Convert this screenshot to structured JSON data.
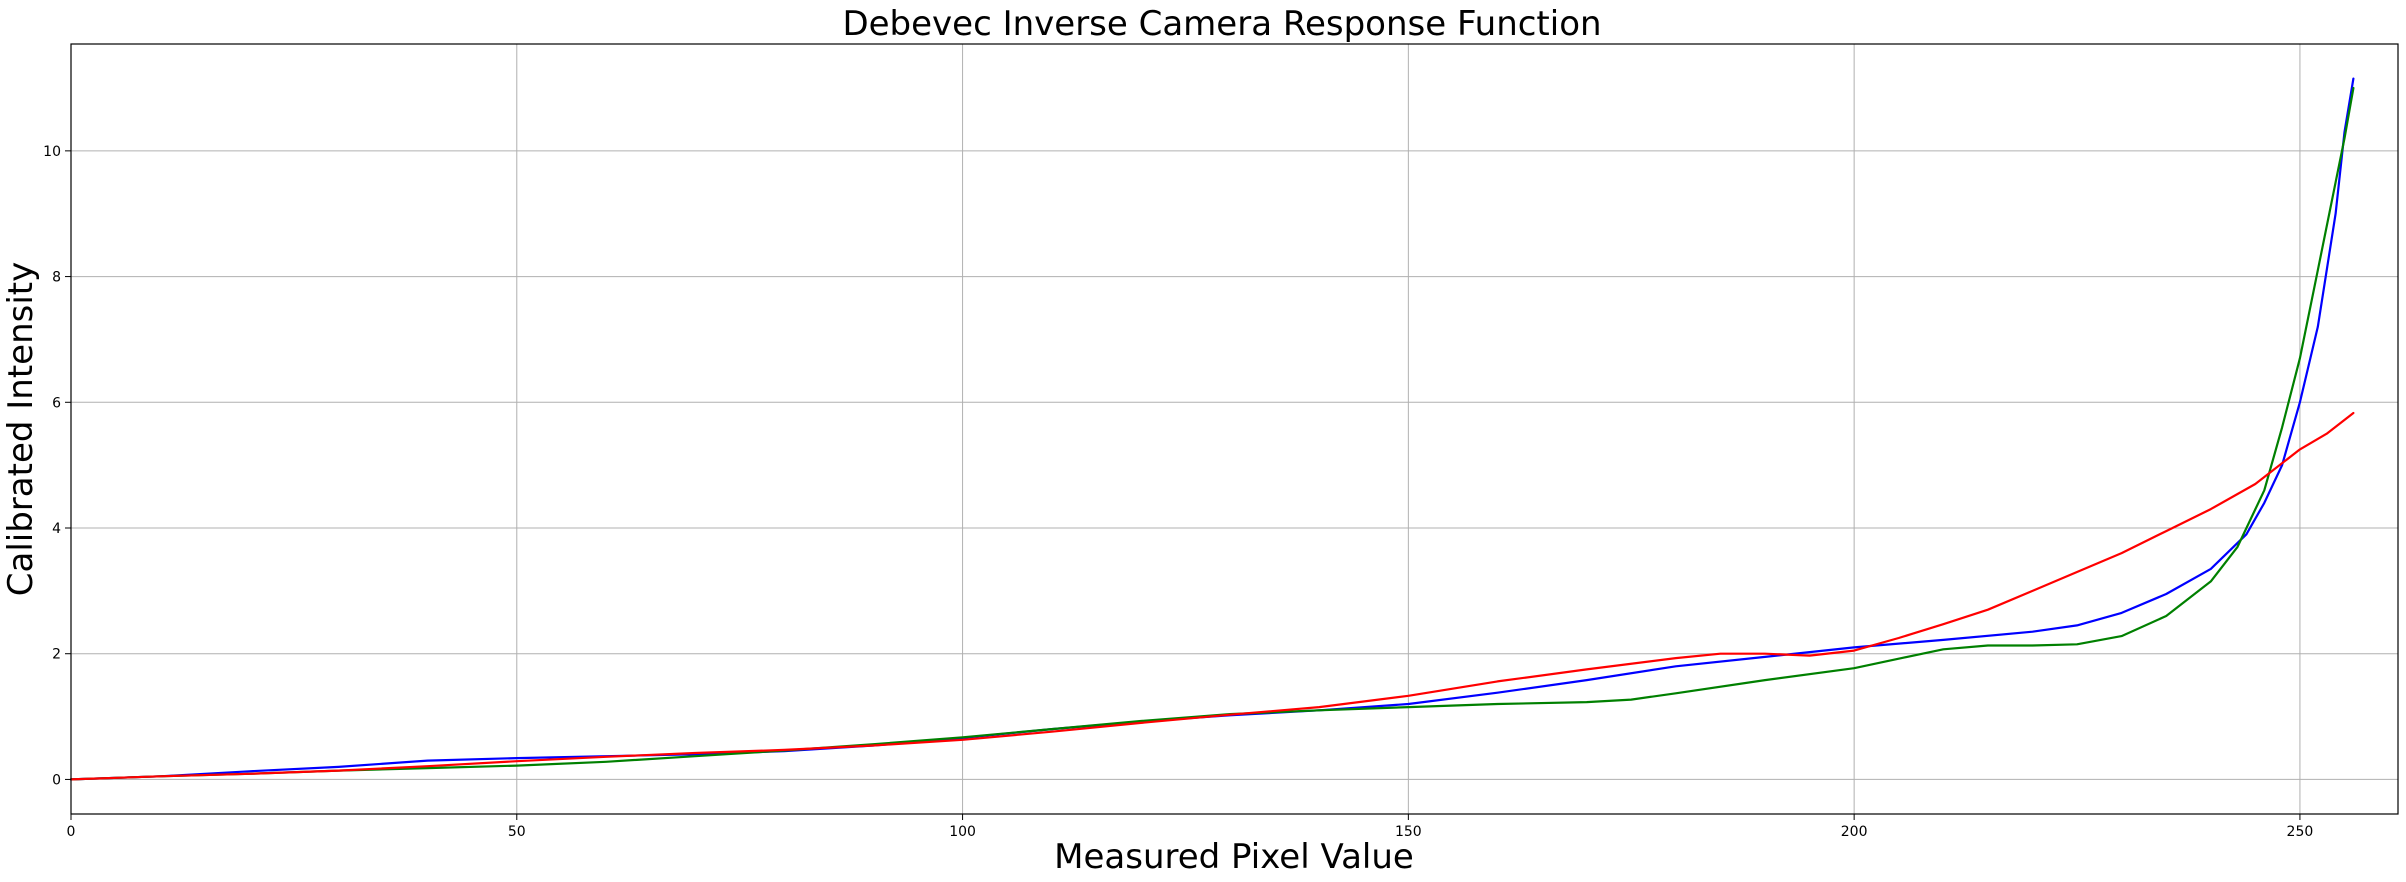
{
  "chart_data": {
    "type": "line",
    "title": "Debevec Inverse Camera Response Function",
    "xlabel": "Measured Pixel Value",
    "ylabel": "Calibrated Intensity",
    "xlim": [
      0,
      261
    ],
    "ylim": [
      -0.55,
      11.7
    ],
    "xticks": [
      0,
      50,
      100,
      150,
      200,
      250
    ],
    "yticks": [
      0,
      2,
      4,
      6,
      8,
      10
    ],
    "grid": true,
    "series": [
      {
        "color": "#0000ff",
        "x": [
          0,
          10,
          20,
          30,
          40,
          50,
          60,
          70,
          80,
          90,
          100,
          110,
          120,
          130,
          140,
          150,
          160,
          170,
          180,
          190,
          200,
          210,
          220,
          225,
          230,
          235,
          240,
          244,
          246,
          248,
          250,
          252,
          254,
          255,
          256
        ],
        "y": [
          0,
          0.05,
          0.13,
          0.2,
          0.3,
          0.34,
          0.37,
          0.4,
          0.45,
          0.54,
          0.66,
          0.8,
          0.92,
          1.02,
          1.1,
          1.2,
          1.38,
          1.58,
          1.8,
          1.95,
          2.1,
          2.22,
          2.35,
          2.45,
          2.65,
          2.95,
          3.35,
          3.9,
          4.4,
          5.0,
          6.0,
          7.2,
          9.0,
          10.3,
          11.15
        ]
      },
      {
        "color": "#008000",
        "x": [
          0,
          10,
          20,
          30,
          40,
          50,
          60,
          70,
          80,
          90,
          100,
          110,
          120,
          130,
          140,
          150,
          160,
          170,
          175,
          180,
          190,
          200,
          205,
          210,
          215,
          220,
          225,
          230,
          235,
          240,
          243,
          246,
          248,
          250,
          252,
          254,
          255,
          256
        ],
        "y": [
          0,
          0.05,
          0.09,
          0.14,
          0.18,
          0.22,
          0.28,
          0.37,
          0.46,
          0.56,
          0.67,
          0.8,
          0.93,
          1.04,
          1.1,
          1.15,
          1.2,
          1.23,
          1.27,
          1.37,
          1.58,
          1.77,
          1.92,
          2.07,
          2.13,
          2.13,
          2.15,
          2.28,
          2.6,
          3.15,
          3.7,
          4.6,
          5.6,
          6.7,
          8.1,
          9.5,
          10.2,
          11.0
        ]
      },
      {
        "color": "#ff0000",
        "x": [
          0,
          10,
          20,
          30,
          40,
          50,
          60,
          70,
          80,
          90,
          100,
          110,
          120,
          130,
          140,
          150,
          160,
          170,
          180,
          185,
          190,
          195,
          200,
          205,
          210,
          215,
          220,
          225,
          230,
          235,
          240,
          245,
          250,
          253,
          256
        ],
        "y": [
          0,
          0.05,
          0.09,
          0.14,
          0.21,
          0.29,
          0.36,
          0.42,
          0.47,
          0.54,
          0.63,
          0.76,
          0.9,
          1.03,
          1.15,
          1.33,
          1.56,
          1.75,
          1.93,
          2.0,
          2.0,
          1.97,
          2.05,
          2.25,
          2.47,
          2.7,
          3.0,
          3.3,
          3.6,
          3.95,
          4.3,
          4.7,
          5.25,
          5.5,
          5.83
        ]
      }
    ]
  }
}
